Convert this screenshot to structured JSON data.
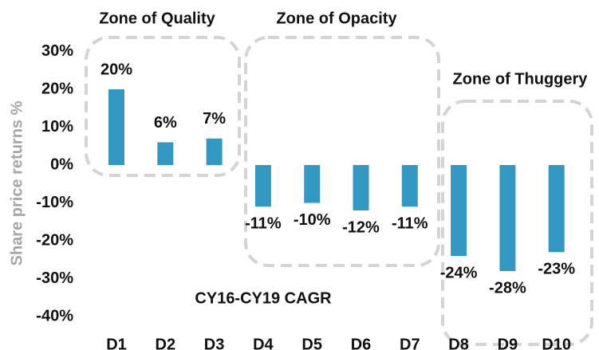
{
  "chart_data": {
    "type": "bar",
    "y_label": "Share price returns %",
    "annotations": [
      "Zone of Quality",
      "Zone of Opacity",
      "Zone of Thuggery",
      "CY16-CY19 CAGR"
    ],
    "categories": [
      "D1",
      "D2",
      "D3",
      "D4",
      "D5",
      "D6",
      "D7",
      "D8",
      "D9",
      "D10"
    ],
    "values": [
      20,
      6,
      7,
      -11,
      -10,
      -12,
      -11,
      -24,
      -28,
      -23
    ],
    "value_labels": [
      "20%",
      "6%",
      "7%",
      "-11%",
      "-10%",
      "-12%",
      "-11%",
      "-24%",
      "-28%",
      "-23%"
    ],
    "color": "#3399c2",
    "ylim": [
      -40,
      30
    ],
    "yticks": [
      {
        "value": -40,
        "label": "-40%"
      },
      {
        "value": -30,
        "label": "-30%"
      },
      {
        "value": -20,
        "label": "-20%"
      },
      {
        "value": -10,
        "label": "-10%"
      },
      {
        "value": 0,
        "label": "0%"
      },
      {
        "value": 10,
        "label": "10%"
      },
      {
        "value": 20,
        "label": "20%"
      },
      {
        "value": 30,
        "label": "30%"
      }
    ],
    "grid": false
  }
}
